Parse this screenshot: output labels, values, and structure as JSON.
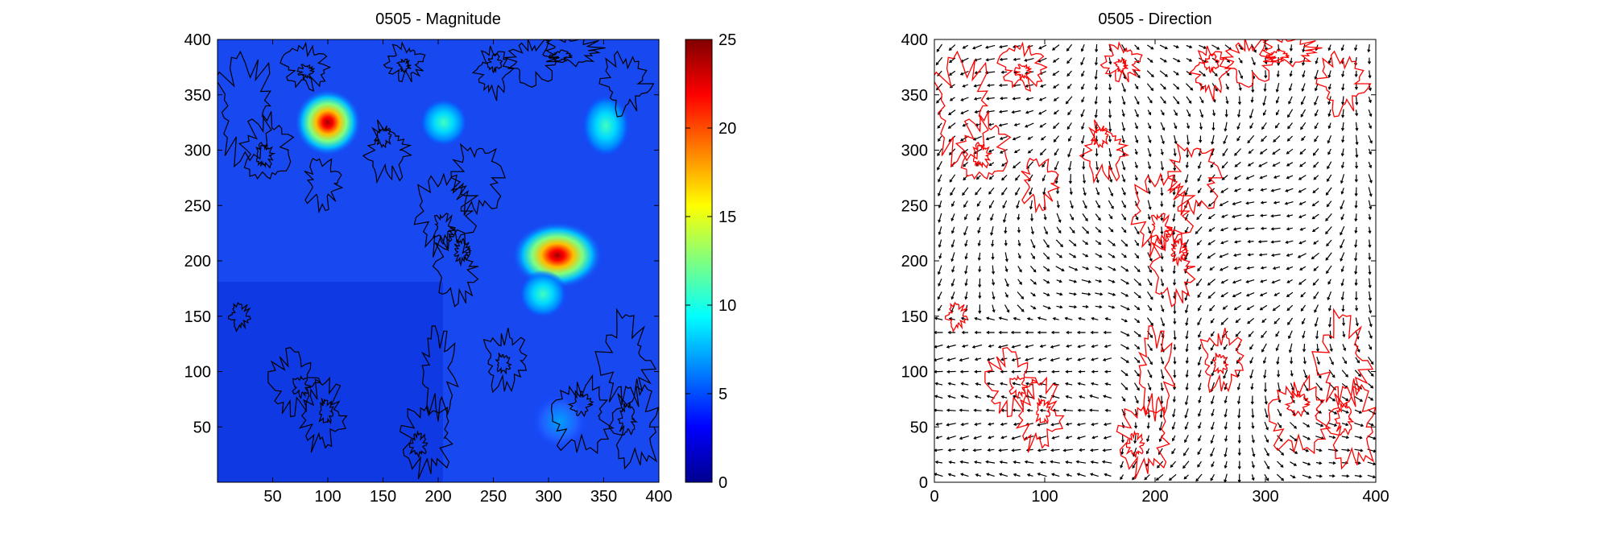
{
  "chart_data": [
    {
      "type": "heatmap",
      "title": "0505 -  Magnitude",
      "xlabel": "",
      "ylabel": "",
      "xlim": [
        0,
        400
      ],
      "ylim": [
        0,
        400
      ],
      "x_ticks": [
        50,
        100,
        150,
        200,
        250,
        300,
        350,
        400
      ],
      "y_ticks": [
        50,
        100,
        150,
        200,
        250,
        300,
        350,
        400
      ],
      "colormap": "jet",
      "colorbar": {
        "range": [
          0,
          25
        ],
        "ticks": [
          0,
          5,
          10,
          15,
          20,
          25
        ]
      },
      "background_value": 2,
      "peaks": [
        {
          "x": 100,
          "y": 325,
          "value": 25
        },
        {
          "x": 205,
          "y": 325,
          "value": 9
        },
        {
          "x": 352,
          "y": 322,
          "value": 8
        },
        {
          "x": 308,
          "y": 205,
          "value": 25
        },
        {
          "x": 295,
          "y": 170,
          "value": 8
        },
        {
          "x": 310,
          "y": 55,
          "value": 5
        }
      ],
      "contour_color": "#000000"
    },
    {
      "type": "quiver",
      "title": "0505 -  Direction",
      "xlabel": "",
      "ylabel": "",
      "xlim": [
        0,
        400
      ],
      "ylim": [
        0,
        400
      ],
      "x_ticks": [
        0,
        100,
        200,
        300,
        400
      ],
      "y_ticks": [
        0,
        50,
        100,
        150,
        200,
        250,
        300,
        350,
        400
      ],
      "arrow_color": "#000000",
      "contour_color": "#ff0000"
    }
  ]
}
